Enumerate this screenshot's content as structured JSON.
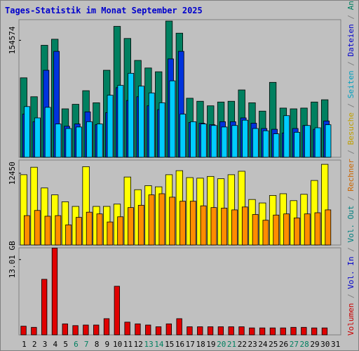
{
  "chart_data": {
    "type": "bar",
    "title": "Tages-Statistik im Monat September 2025",
    "categories": [
      "1",
      "2",
      "3",
      "4",
      "5",
      "6",
      "7",
      "8",
      "9",
      "10",
      "11",
      "12",
      "13",
      "14",
      "15",
      "16",
      "17",
      "18",
      "19",
      "20",
      "21",
      "22",
      "23",
      "24",
      "25",
      "26",
      "27",
      "28",
      "29",
      "30",
      "31"
    ],
    "weekend_days": [
      "6",
      "7",
      "13",
      "14",
      "20",
      "21",
      "27",
      "28"
    ],
    "panels": [
      {
        "id": "top",
        "tick_label": "154574",
        "tick_value": 154574,
        "ylim": [
          0,
          180000
        ],
        "series": [
          {
            "name": "Anfragen",
            "values": [
              105000,
              80000,
              148000,
              156000,
              64000,
              70000,
              88000,
              72000,
              115000,
              173000,
              157000,
              128000,
              118000,
              113000,
              180000,
              164000,
              78000,
              74000,
              68000,
              73000,
              74000,
              89000,
              72000,
              61000,
              99000,
              65000,
              64000,
              65000,
              73000,
              76000,
              0
            ]
          },
          {
            "name": "Dateien",
            "values": [
              57000,
              47000,
              115000,
              140000,
              41000,
              44000,
              60000,
              43000,
              59000,
              92000,
              75000,
              80000,
              68000,
              63000,
              130000,
              140000,
              46000,
              45000,
              43000,
              47000,
              47000,
              52000,
              45000,
              38000,
              37000,
              32000,
              38000,
              42000,
              37000,
              48000,
              0
            ]
          },
          {
            "name": "Seiten",
            "values": [
              67000,
              52000,
              66000,
              44000,
              38000,
              40000,
              47000,
              44000,
              82000,
              95000,
              111000,
              94000,
              85000,
              72000,
              101000,
              57000,
              47000,
              44000,
              42000,
              40000,
              42000,
              49000,
              38000,
              35000,
              31000,
              55000,
              33000,
              42000,
              39000,
              43000,
              0
            ]
          }
        ]
      },
      {
        "id": "middle",
        "tick_label": "12450",
        "tick_value": 12450,
        "ylim": [
          0,
          14500
        ],
        "series": [
          {
            "name": "Besuche",
            "values": [
              12200,
              13500,
              9900,
              8700,
              7500,
              6700,
              13600,
              6700,
              6700,
              7100,
              11800,
              9600,
              10300,
              10100,
              12200,
              12900,
              11700,
              11600,
              11900,
              11500,
              12200,
              12800,
              7900,
              7300,
              8600,
              8900,
              7700,
              8800,
              11200,
              14000,
              0
            ]
          },
          {
            "name": "Rechner",
            "values": [
              5100,
              6000,
              5000,
              5100,
              3500,
              4800,
              5700,
              5400,
              4000,
              4900,
              6500,
              6900,
              8700,
              8900,
              8300,
              7600,
              7600,
              6800,
              6500,
              6400,
              6100,
              6600,
              5300,
              4300,
              5200,
              5400,
              4700,
              5400,
              5600,
              6100,
              0
            ]
          }
        ]
      },
      {
        "id": "bottom",
        "tick_label": "13.01 GB",
        "tick_value": 13.01,
        "ylim": [
          0,
          14.8
        ],
        "series": [
          {
            "name": "Vol. Out",
            "values": [
              0,
              0,
              0,
              0,
              0,
              0,
              0,
              0,
              0,
              0,
              0,
              0,
              0,
              0,
              0,
              0,
              0,
              0,
              0,
              0,
              0,
              0,
              0,
              0,
              0,
              0,
              0,
              0,
              0,
              0,
              0
            ]
          },
          {
            "name": "Volumen",
            "values": [
              1.5,
              1.3,
              9.6,
              15.0,
              1.9,
              1.6,
              1.7,
              1.7,
              2.8,
              8.4,
              2.2,
              1.9,
              1.7,
              1.4,
              1.9,
              2.8,
              1.4,
              1.4,
              1.4,
              1.4,
              1.4,
              1.4,
              1.2,
              1.2,
              1.2,
              1.2,
              1.3,
              1.3,
              1.2,
              1.2,
              0
            ]
          }
        ]
      }
    ],
    "right_legend": [
      {
        "label": "Volumen",
        "color": "#cc0000"
      },
      {
        "label": " / ",
        "color": "#808080"
      },
      {
        "label": "Vol. In",
        "color": "#0000cc"
      },
      {
        "label": " / ",
        "color": "#808080"
      },
      {
        "label": "Vol. Out",
        "color": "#008080"
      },
      {
        "label": " / ",
        "color": "#808080"
      },
      {
        "label": "Rechner",
        "color": "#cc6600"
      },
      {
        "label": " / ",
        "color": "#808080"
      },
      {
        "label": "Besuche",
        "color": "#c0a000"
      },
      {
        "label": " / ",
        "color": "#808080"
      },
      {
        "label": "Seiten",
        "color": "#00a0c0"
      },
      {
        "label": " / ",
        "color": "#808080"
      },
      {
        "label": "Dateien",
        "color": "#0000cc"
      },
      {
        "label": " / ",
        "color": "#808080"
      },
      {
        "label": "Anfragen",
        "color": "#008060"
      }
    ],
    "colors": {
      "Anfragen": "#008060",
      "Dateien": "#0033dd",
      "Seiten": "#00ccff",
      "Besuche": "#ffff00",
      "Rechner": "#ff8c00",
      "Volumen": "#e00000",
      "Vol. Out": "#008080",
      "title": "#0000cc",
      "weekday_label": "#000000",
      "weekend_label": "#008060",
      "panel_bg": "#c0c0c0",
      "frame": "#808080"
    }
  }
}
